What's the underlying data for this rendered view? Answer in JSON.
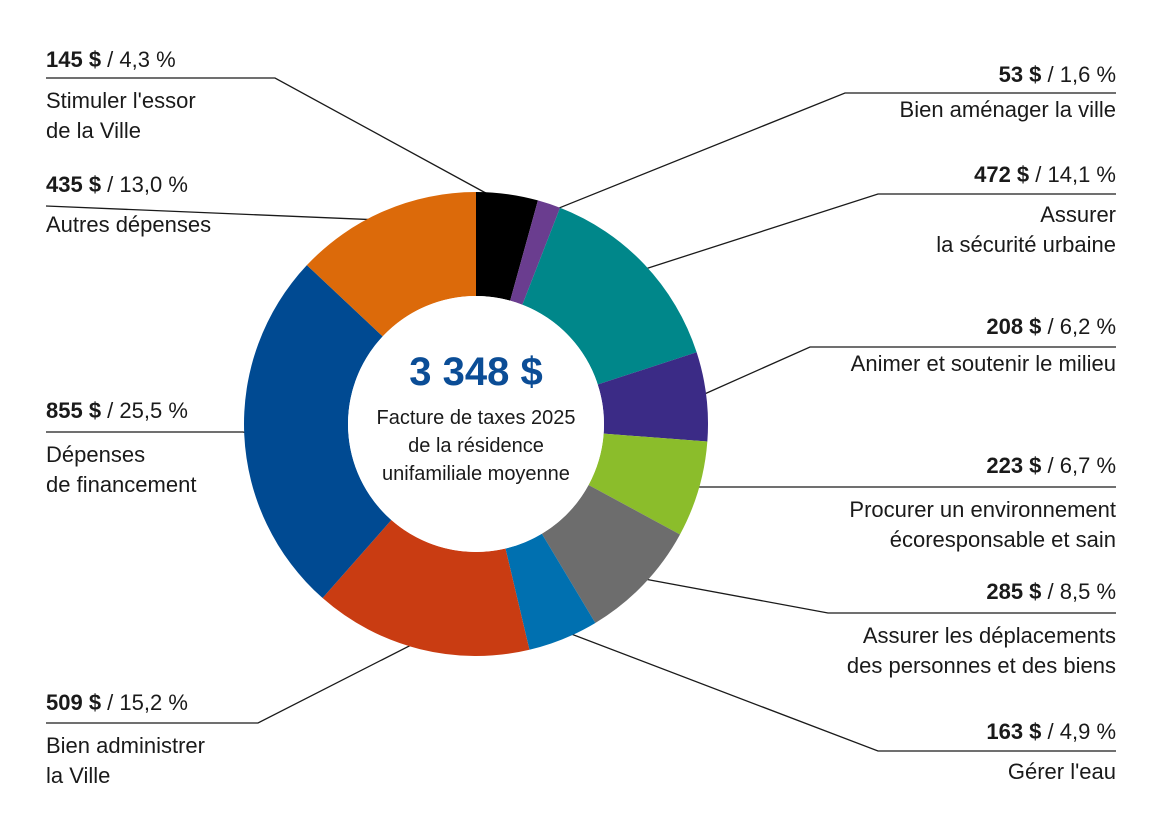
{
  "chart_data": {
    "type": "donut",
    "center": {
      "total": "3 348 $",
      "lines": [
        "Facture de taxes 2025",
        "de la résidence",
        "unifamiliale moyenne"
      ]
    },
    "start_angle_deg": 0,
    "direction": "clockwise",
    "slices": [
      {
        "amount": "145 $",
        "percent": "4,3 %",
        "value": 4.3,
        "label": [
          "Stimuler l'essor",
          "de la Ville"
        ],
        "color": "#000000",
        "side": "left"
      },
      {
        "amount": "53 $",
        "percent": "1,6 %",
        "value": 1.6,
        "label": [
          "Bien aménager la ville"
        ],
        "color": "#6a3d8f",
        "side": "right"
      },
      {
        "amount": "472 $",
        "percent": "14,1 %",
        "value": 14.1,
        "label": [
          "Assurer",
          "la sécurité urbaine"
        ],
        "color": "#00878a",
        "side": "right"
      },
      {
        "amount": "208 $",
        "percent": "6,2 %",
        "value": 6.2,
        "label": [
          "Animer et soutenir le milieu"
        ],
        "color": "#3b2b86",
        "side": "right"
      },
      {
        "amount": "223 $",
        "percent": "6,7 %",
        "value": 6.7,
        "label": [
          "Procurer un environnement",
          "écoresponsable et sain"
        ],
        "color": "#8bbd2b",
        "side": "right"
      },
      {
        "amount": "285 $",
        "percent": "8,5 %",
        "value": 8.5,
        "label": [
          "Assurer les déplacements",
          "des personnes et des biens"
        ],
        "color": "#6d6d6d",
        "side": "right"
      },
      {
        "amount": "163 $",
        "percent": "4,9 %",
        "value": 4.9,
        "label": [
          "Gérer l'eau"
        ],
        "color": "#0070b0",
        "side": "right"
      },
      {
        "amount": "509 $",
        "percent": "15,2 %",
        "value": 15.2,
        "label": [
          "Bien administrer",
          "la Ville"
        ],
        "color": "#c93c12",
        "side": "left"
      },
      {
        "amount": "855 $",
        "percent": "25,5 %",
        "value": 25.5,
        "label": [
          "Dépenses",
          "de financement"
        ],
        "color": "#004a92",
        "side": "left"
      },
      {
        "amount": "435 $",
        "percent": "13,0 %",
        "value": 13.0,
        "label": [
          "Autres dépenses"
        ],
        "color": "#dc6a0a",
        "side": "left"
      }
    ],
    "accent_color": "#0b4d96"
  }
}
